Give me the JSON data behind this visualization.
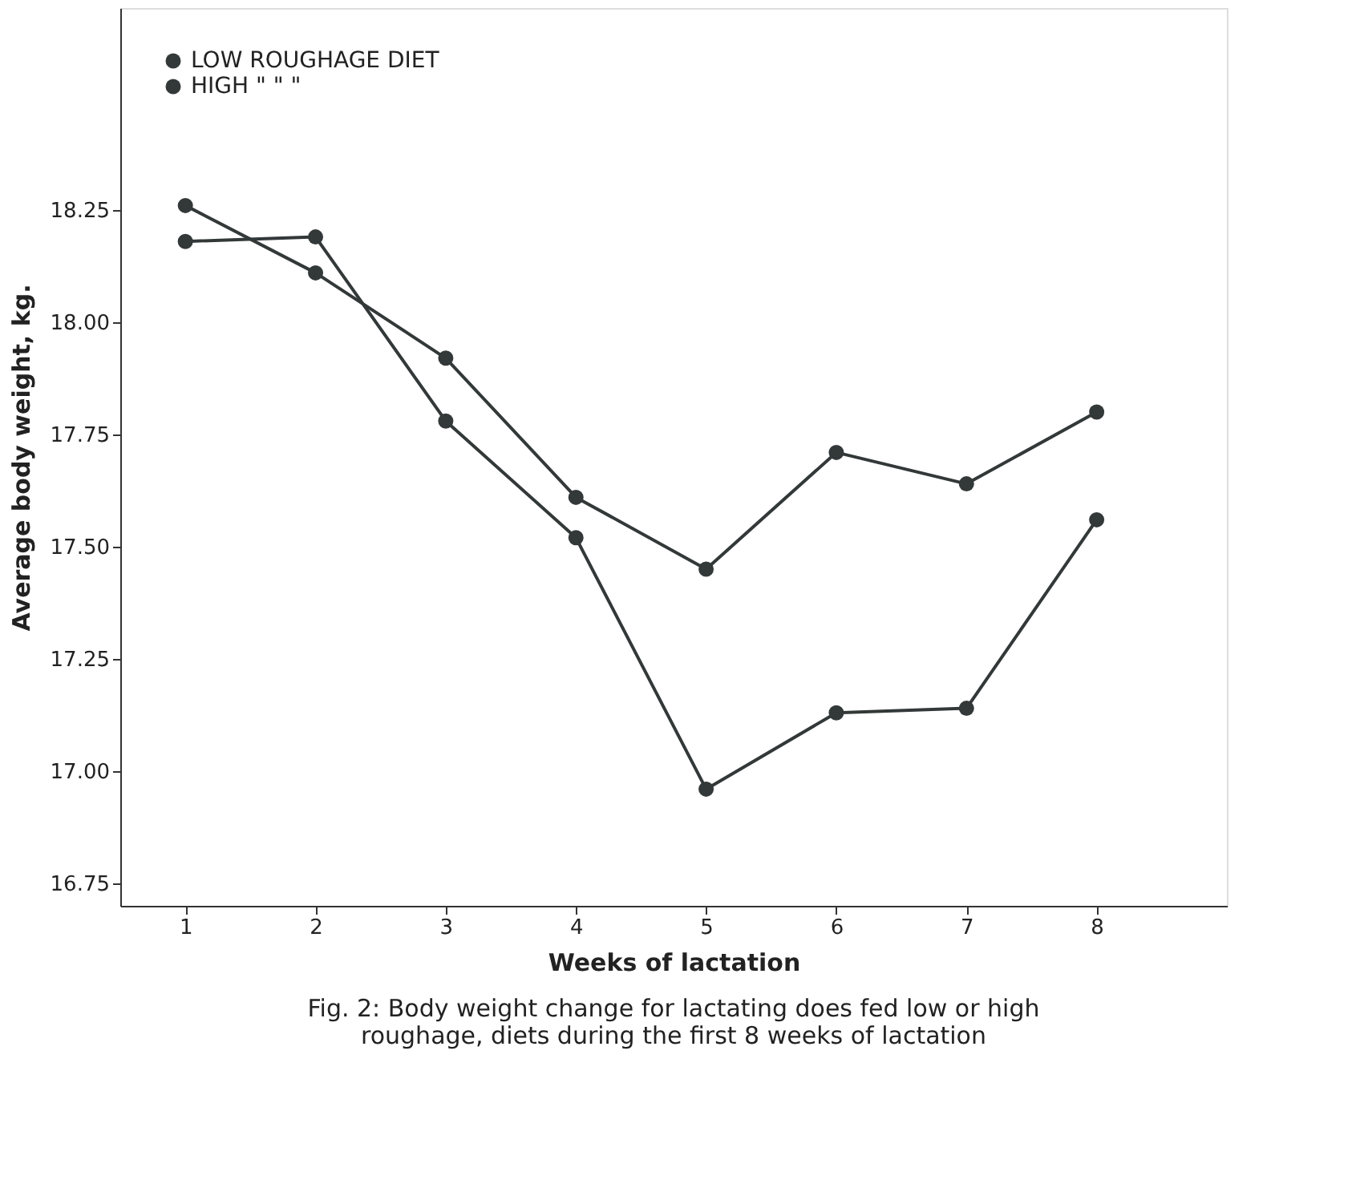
{
  "chart_data": {
    "type": "line",
    "title": "Fig. 2: Body weight change for lactating does fed low or high\nroughage, diets during the first 8 weeks of lactation",
    "xlabel": "Weeks of lactation",
    "ylabel": "Average body weight, kg.",
    "x": [
      1,
      2,
      3,
      4,
      5,
      6,
      7,
      8
    ],
    "series": [
      {
        "name": "LOW ROUGHAGE DIET",
        "color": "#333838",
        "values": [
          18.26,
          18.11,
          17.92,
          17.61,
          17.45,
          17.71,
          17.64,
          17.8
        ]
      },
      {
        "name": "HIGH \"      \"      \"",
        "color": "#333838",
        "values": [
          18.18,
          18.19,
          17.78,
          17.52,
          16.96,
          17.13,
          17.14,
          17.56
        ]
      }
    ],
    "xlim": [
      0.5,
      9
    ],
    "xticks": [
      1,
      2,
      3,
      4,
      5,
      6,
      7,
      8
    ],
    "ylim": [
      16.7,
      18.7
    ],
    "yticks": [
      16.75,
      {
        "value": 17,
        "label": "17.00"
      },
      17.25,
      {
        "value": 17.5,
        "label": "17.50"
      },
      17.75,
      {
        "value": 18,
        "label": "18.00"
      },
      18.25
    ],
    "grid": false,
    "legend": "top left",
    "marker": "circle",
    "line_style": "solid"
  }
}
